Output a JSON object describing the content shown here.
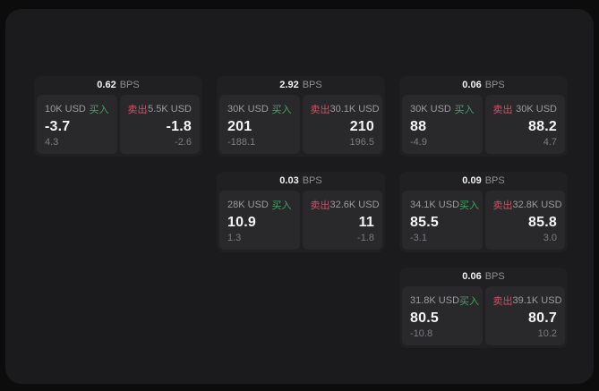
{
  "labels": {
    "buy": "买入",
    "sell": "卖出",
    "bps_unit": "BPS"
  },
  "colors": {
    "outer_background": "#0c0c0d",
    "panel_background": "#1b1b1d",
    "card_background": "#202022",
    "subpanel_background": "#29292b",
    "buy_green": "#3fa564",
    "sell_red": "#cd5268",
    "primary_text": "#f2f2f2",
    "muted_text": "#9b9b9f",
    "dim_text": "#7c7c80"
  },
  "cards": [
    {
      "bps": "0.62",
      "buy": {
        "amount": "10K USD",
        "price": "-3.7",
        "change": "4.3"
      },
      "sell": {
        "amount": "5.5K USD",
        "price": "-1.8",
        "change": "-2.6"
      }
    },
    {
      "bps": "2.92",
      "buy": {
        "amount": "30K USD",
        "price": "201",
        "change": "-188.1"
      },
      "sell": {
        "amount": "30.1K USD",
        "price": "210",
        "change": "196.5"
      }
    },
    {
      "bps": "0.06",
      "buy": {
        "amount": "30K USD",
        "price": "88",
        "change": "-4.9"
      },
      "sell": {
        "amount": "30K USD",
        "price": "88.2",
        "change": "4.7"
      }
    },
    {
      "bps": "0.03",
      "buy": {
        "amount": "28K USD",
        "price": "10.9",
        "change": "1.3"
      },
      "sell": {
        "amount": "32.6K USD",
        "price": "11",
        "change": "-1.8"
      }
    },
    {
      "bps": "0.09",
      "buy": {
        "amount": "34.1K USD",
        "price": "85.5",
        "change": "-3.1"
      },
      "sell": {
        "amount": "32.8K USD",
        "price": "85.8",
        "change": "3.0"
      }
    },
    {
      "bps": "0.06",
      "buy": {
        "amount": "31.8K USD",
        "price": "80.5",
        "change": "-10.8"
      },
      "sell": {
        "amount": "39.1K USD",
        "price": "80.7",
        "change": "10.2"
      }
    }
  ]
}
